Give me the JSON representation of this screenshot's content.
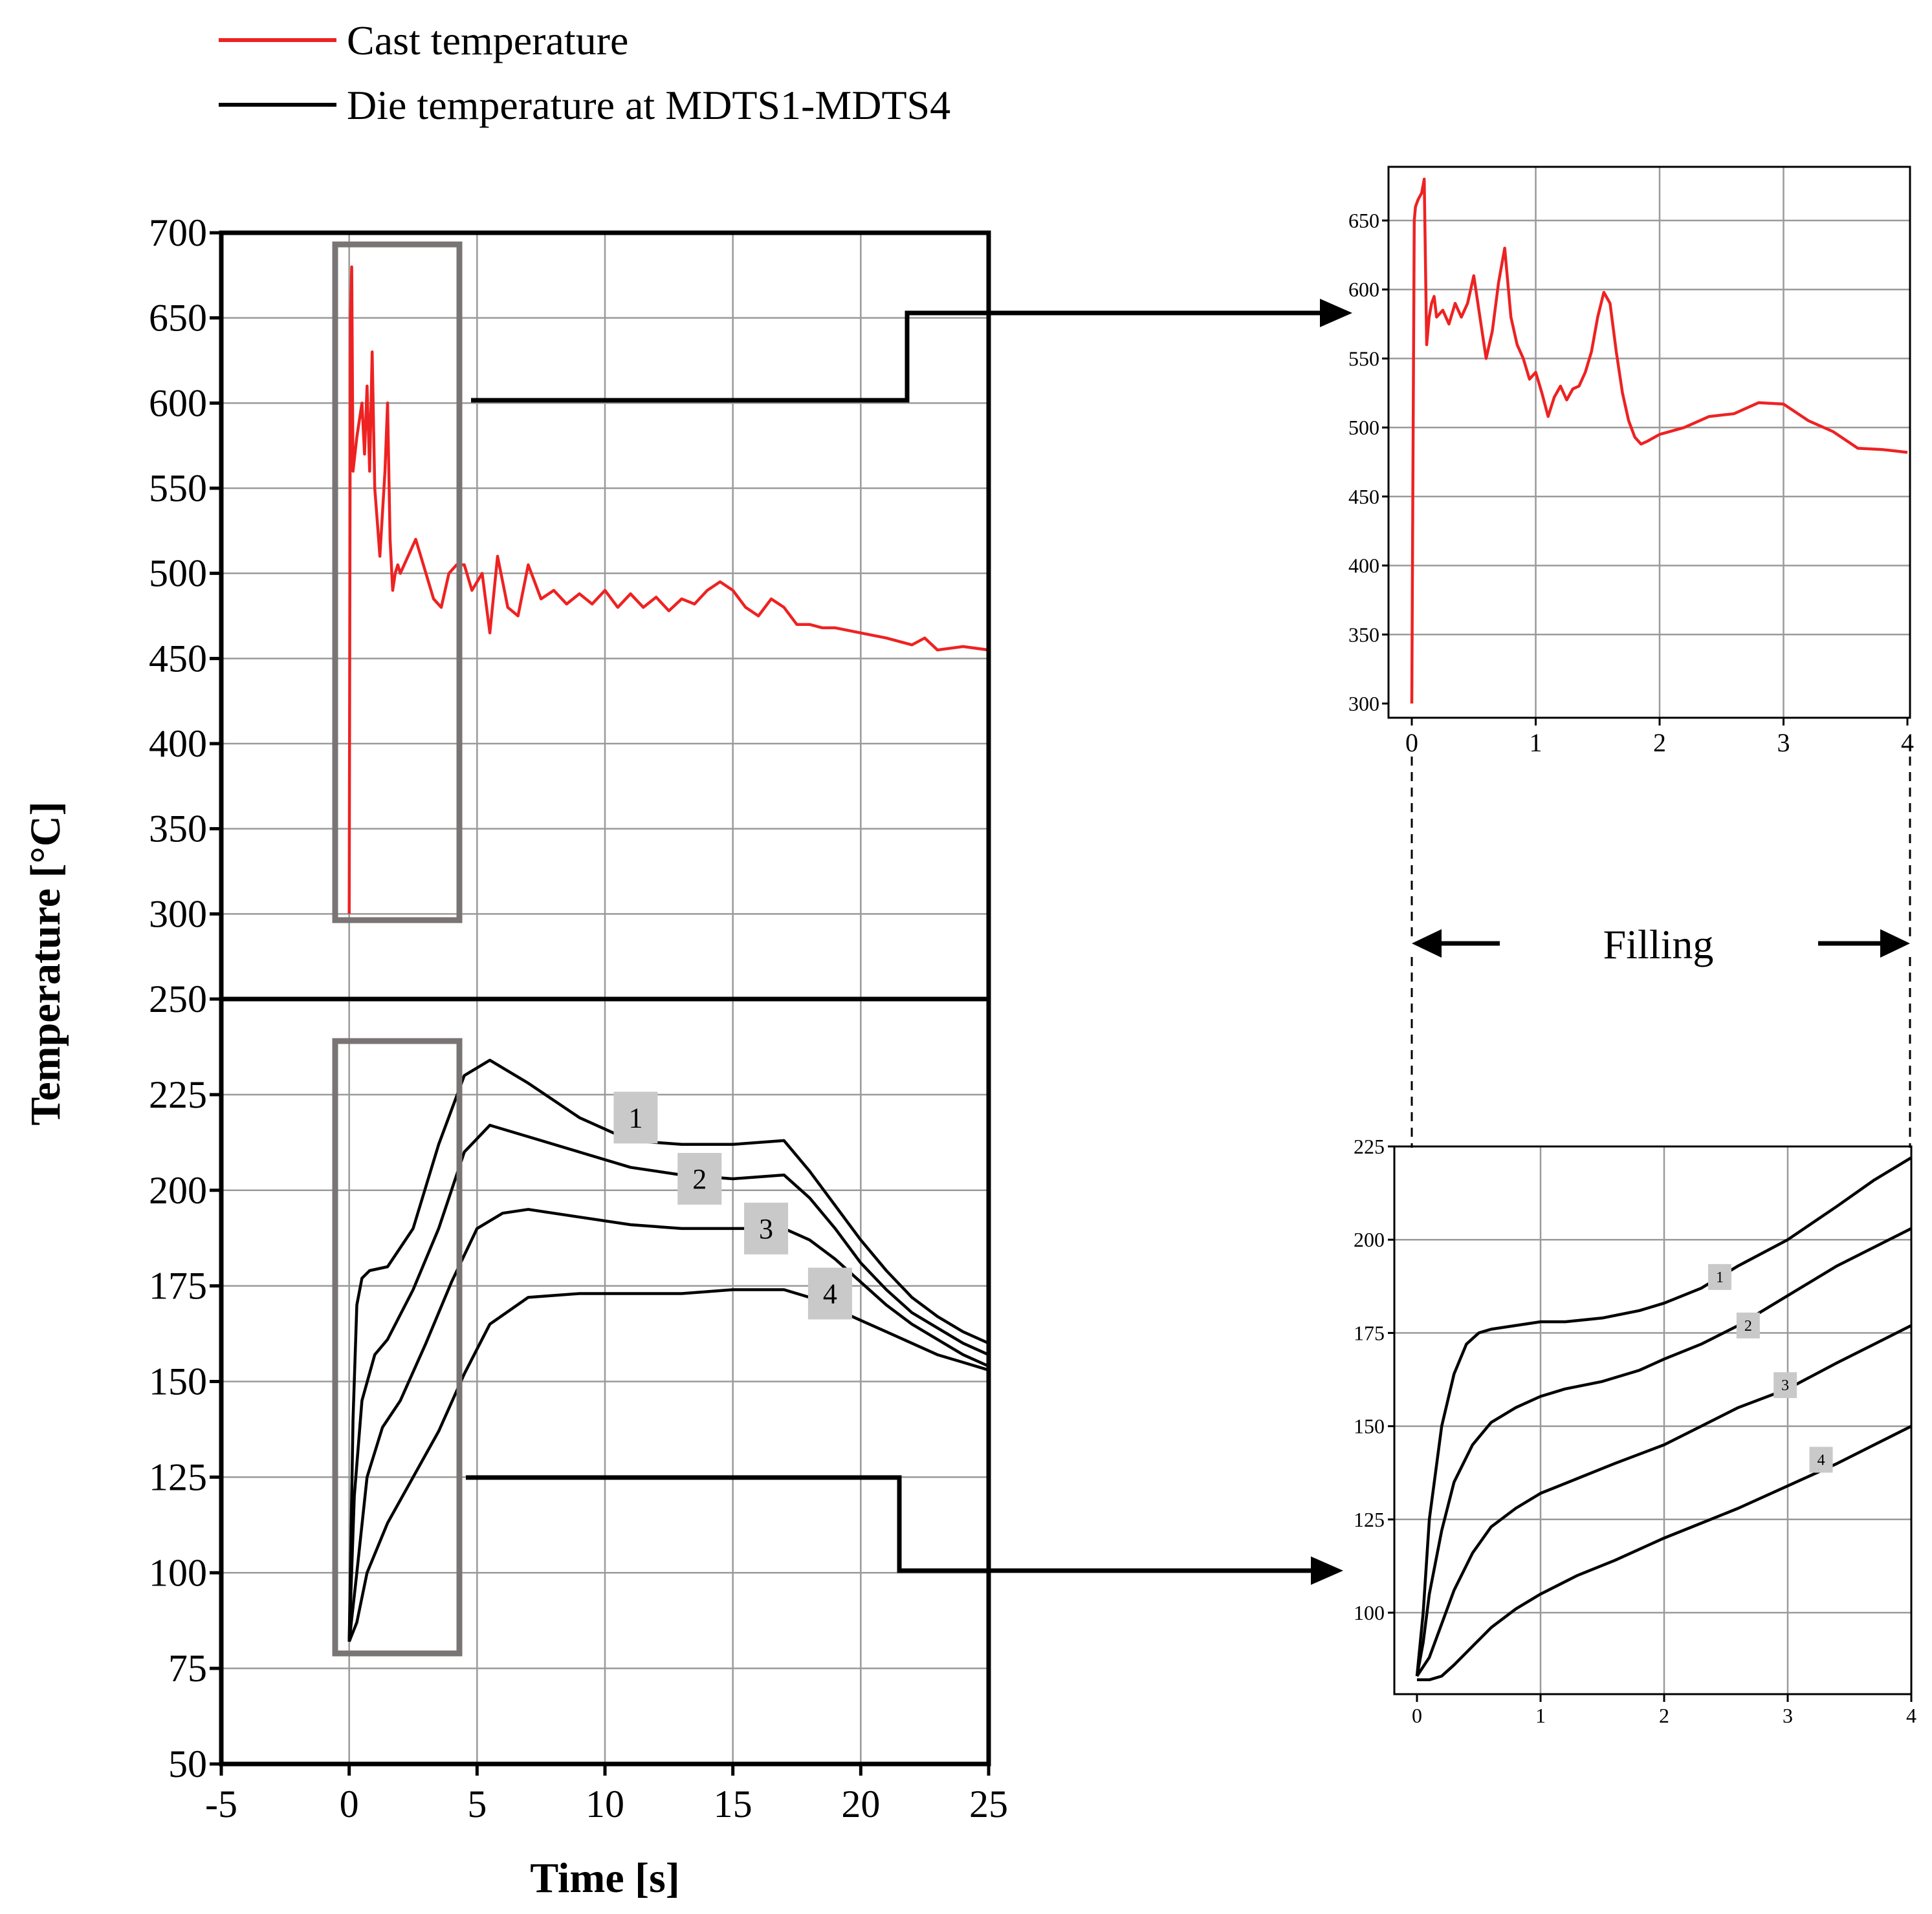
{
  "legend": {
    "items": [
      {
        "label": "Cast temperature",
        "color": "#ee2222"
      },
      {
        "label": "Die temperature at MDTS1-MDTS4",
        "color": "#000000"
      }
    ]
  },
  "annotation": {
    "filling_label": "Filling"
  },
  "chart_data": [
    {
      "id": "main",
      "type": "line",
      "xlabel": "Time [s]",
      "ylabel": "Temperature [°C]",
      "xlim": [
        -5,
        25
      ],
      "xticks": [
        -5,
        0,
        5,
        10,
        15,
        20,
        25
      ],
      "upper_panel": {
        "ylim": [
          250,
          700
        ],
        "yticks": [
          250,
          300,
          350,
          400,
          450,
          500,
          550,
          600,
          650,
          700
        ],
        "series": [
          {
            "name": "Cast temperature",
            "color": "#ee2222",
            "x": [
              0,
              0.05,
              0.1,
              0.15,
              0.3,
              0.5,
              0.6,
              0.7,
              0.8,
              0.9,
              1.0,
              1.1,
              1.2,
              1.4,
              1.5,
              1.6,
              1.7,
              1.8,
              1.9,
              2.0,
              2.3,
              2.6,
              3.0,
              3.3,
              3.6,
              3.9,
              4.2,
              4.5,
              4.8,
              5.2,
              5.5,
              5.8,
              6.2,
              6.6,
              7.0,
              7.5,
              8.0,
              8.5,
              9.0,
              9.5,
              10.0,
              10.5,
              11.0,
              11.5,
              12.0,
              12.5,
              13.0,
              13.5,
              14.0,
              14.5,
              15.0,
              15.5,
              16.0,
              16.5,
              17.0,
              17.5,
              18.0,
              18.5,
              19.0,
              20.0,
              21.0,
              22.0,
              22.5,
              23.0,
              24.0,
              25.0
            ],
            "y": [
              300,
              650,
              680,
              560,
              580,
              600,
              570,
              610,
              560,
              630,
              550,
              530,
              510,
              560,
              600,
              520,
              490,
              500,
              505,
              500,
              510,
              520,
              500,
              485,
              480,
              500,
              505,
              505,
              490,
              500,
              465,
              510,
              480,
              475,
              505,
              485,
              490,
              482,
              488,
              482,
              490,
              480,
              488,
              480,
              486,
              478,
              485,
              482,
              490,
              495,
              490,
              480,
              475,
              485,
              480,
              470,
              470,
              468,
              468,
              465,
              462,
              458,
              462,
              455,
              457,
              455
            ]
          }
        ]
      },
      "lower_panel": {
        "ylim": [
          50,
          250
        ],
        "yticks": [
          50,
          75,
          100,
          125,
          150,
          175,
          200,
          225,
          250
        ],
        "series": [
          {
            "name": "1",
            "color": "#000000",
            "x": [
              0,
              0.15,
              0.3,
              0.5,
              0.8,
              1.5,
              2.5,
              3.5,
              4.5,
              5.5,
              7,
              9,
              11,
              13,
              15,
              17,
              18,
              19,
              20,
              21,
              22,
              23,
              24,
              25
            ],
            "y": [
              82,
              140,
              170,
              177,
              179,
              180,
              190,
              212,
              230,
              234,
              228,
              219,
              213,
              212,
              212,
              213,
              205,
              196,
              187,
              179,
              172,
              167,
              163,
              160
            ]
          },
          {
            "name": "2",
            "color": "#000000",
            "x": [
              0,
              0.2,
              0.5,
              1,
              1.5,
              2.5,
              3.5,
              4.5,
              5.5,
              7,
              9,
              11,
              13,
              15,
              17,
              18,
              19,
              20,
              21,
              22,
              23,
              24,
              25
            ],
            "y": [
              82,
              120,
              145,
              157,
              161,
              174,
              190,
              210,
              217,
              214,
              210,
              206,
              204,
              203,
              204,
              198,
              190,
              181,
              174,
              168,
              164,
              160,
              157
            ]
          },
          {
            "name": "3",
            "color": "#000000",
            "x": [
              0,
              0.3,
              0.7,
              1.3,
              2,
              3,
              4,
              5,
              6,
              7,
              9,
              11,
              13,
              15,
              17,
              18,
              19,
              20,
              21,
              22,
              23,
              24,
              25
            ],
            "y": [
              82,
              100,
              125,
              138,
              145,
              160,
              176,
              190,
              194,
              195,
              193,
              191,
              190,
              190,
              190,
              187,
              182,
              176,
              170,
              165,
              161,
              157,
              154
            ]
          },
          {
            "name": "4",
            "color": "#000000",
            "x": [
              0,
              0.3,
              0.7,
              1.5,
              2.5,
              3.5,
              4.5,
              5.5,
              7,
              9,
              11,
              13,
              15,
              17,
              18,
              19,
              20,
              21,
              22,
              23,
              24,
              25
            ],
            "y": [
              82,
              87,
              100,
              113,
              125,
              137,
              152,
              165,
              172,
              173,
              173,
              173,
              174,
              174,
              172,
              169,
              166,
              163,
              160,
              157,
              155,
              153
            ]
          }
        ],
        "series_labels": [
          "1",
          "2",
          "3",
          "4"
        ]
      }
    },
    {
      "id": "inset-cast",
      "type": "line",
      "xlim": [
        0,
        4
      ],
      "ylim": [
        300,
        680
      ],
      "xticks": [
        0,
        1,
        2,
        3,
        4
      ],
      "yticks": [
        300,
        350,
        400,
        450,
        500,
        550,
        600,
        650
      ],
      "series": [
        {
          "name": "Cast temperature (0-4 s)",
          "color": "#ee2222",
          "x": [
            0,
            0.01,
            0.02,
            0.03,
            0.05,
            0.08,
            0.1,
            0.12,
            0.14,
            0.16,
            0.18,
            0.2,
            0.25,
            0.3,
            0.35,
            0.4,
            0.45,
            0.5,
            0.55,
            0.6,
            0.65,
            0.7,
            0.75,
            0.8,
            0.85,
            0.9,
            0.95,
            1.0,
            1.05,
            1.1,
            1.15,
            1.2,
            1.25,
            1.3,
            1.35,
            1.4,
            1.45,
            1.5,
            1.55,
            1.6,
            1.65,
            1.7,
            1.75,
            1.8,
            1.85,
            1.9,
            2.0,
            2.2,
            2.4,
            2.6,
            2.8,
            3.0,
            3.2,
            3.4,
            3.6,
            3.8,
            3.9,
            4.0
          ],
          "y": [
            300,
            480,
            650,
            660,
            665,
            670,
            680,
            560,
            580,
            590,
            595,
            580,
            585,
            575,
            590,
            580,
            590,
            610,
            580,
            550,
            570,
            605,
            630,
            580,
            560,
            550,
            535,
            540,
            525,
            508,
            522,
            530,
            520,
            528,
            530,
            540,
            555,
            580,
            598,
            590,
            555,
            525,
            505,
            493,
            488,
            490,
            495,
            500,
            508,
            510,
            518,
            517,
            505,
            497,
            485,
            484,
            483,
            482
          ]
        }
      ]
    },
    {
      "id": "inset-die",
      "type": "line",
      "xlim": [
        0,
        4
      ],
      "ylim": [
        82,
        225
      ],
      "xticks": [
        0,
        1,
        2,
        3,
        4
      ],
      "yticks": [
        100,
        125,
        150,
        175,
        200,
        225
      ],
      "series": [
        {
          "name": "1",
          "color": "#000000",
          "x": [
            0,
            0.05,
            0.1,
            0.2,
            0.3,
            0.4,
            0.5,
            0.6,
            0.8,
            1.0,
            1.2,
            1.5,
            1.8,
            2.0,
            2.3,
            2.6,
            3.0,
            3.4,
            3.7,
            4.0
          ],
          "y": [
            83,
            100,
            125,
            150,
            164,
            172,
            175,
            176,
            177,
            178,
            178,
            179,
            181,
            183,
            187,
            193,
            200,
            209,
            216,
            222
          ]
        },
        {
          "name": "2",
          "color": "#000000",
          "x": [
            0,
            0.05,
            0.1,
            0.2,
            0.3,
            0.45,
            0.6,
            0.8,
            1.0,
            1.2,
            1.5,
            1.8,
            2.0,
            2.3,
            2.6,
            3.0,
            3.4,
            3.7,
            4.0
          ],
          "y": [
            83,
            92,
            105,
            122,
            135,
            145,
            151,
            155,
            158,
            160,
            162,
            165,
            168,
            172,
            177,
            185,
            193,
            198,
            203
          ]
        },
        {
          "name": "3",
          "color": "#000000",
          "x": [
            0,
            0.1,
            0.2,
            0.3,
            0.45,
            0.6,
            0.8,
            1.0,
            1.3,
            1.6,
            2.0,
            2.3,
            2.6,
            3.0,
            3.4,
            3.7,
            4.0
          ],
          "y": [
            83,
            88,
            97,
            106,
            116,
            123,
            128,
            132,
            136,
            140,
            145,
            150,
            155,
            160,
            167,
            172,
            177
          ]
        },
        {
          "name": "4",
          "color": "#000000",
          "x": [
            0,
            0.1,
            0.2,
            0.3,
            0.45,
            0.6,
            0.8,
            1.0,
            1.3,
            1.6,
            2.0,
            2.3,
            2.6,
            3.0,
            3.4,
            3.7,
            4.0
          ],
          "y": [
            82,
            82,
            83,
            86,
            91,
            96,
            101,
            105,
            110,
            114,
            120,
            124,
            128,
            134,
            140,
            145,
            150
          ]
        }
      ],
      "series_labels": [
        "1",
        "2",
        "3",
        "4"
      ]
    }
  ]
}
